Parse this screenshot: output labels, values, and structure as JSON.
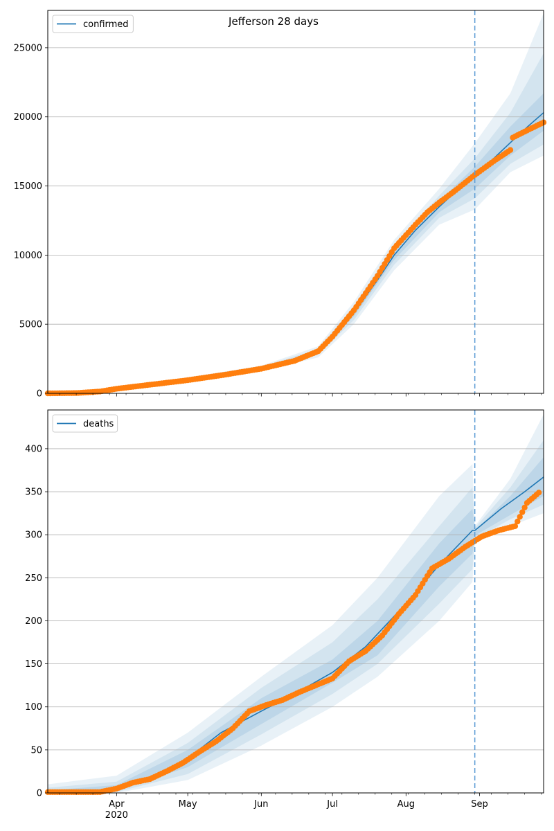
{
  "chart_data": [
    {
      "type": "line",
      "title": "Jefferson 28 days",
      "xlabel": "",
      "ylabel": "",
      "ylim": [
        0,
        27700
      ],
      "xlim": [
        "2020-03-03",
        "2020-09-28"
      ],
      "yticks": [
        0,
        5000,
        10000,
        15000,
        20000,
        25000
      ],
      "grid": "horizontal",
      "legend": {
        "position": "top-left",
        "entries": [
          "confirmed"
        ]
      },
      "forecast_start": "2020-08-30",
      "series": [
        {
          "name": "confirmed",
          "style": "line",
          "color": "#1f77b4",
          "x": [
            "2020-03-03",
            "2020-03-15",
            "2020-03-25",
            "2020-04-01",
            "2020-04-15",
            "2020-05-01",
            "2020-05-15",
            "2020-06-01",
            "2020-06-15",
            "2020-06-25",
            "2020-07-01",
            "2020-07-10",
            "2020-07-20",
            "2020-07-27",
            "2020-08-05",
            "2020-08-15",
            "2020-08-22",
            "2020-08-30",
            "2020-09-07",
            "2020-09-15",
            "2020-09-22",
            "2020-09-28"
          ],
          "values": [
            0,
            30,
            150,
            350,
            650,
            1000,
            1350,
            1800,
            2300,
            3000,
            4000,
            5800,
            8200,
            10000,
            11800,
            13500,
            14600,
            15700,
            17000,
            18300,
            19400,
            20300
          ]
        },
        {
          "name": "",
          "style": "markers",
          "color": "#ff7f0e",
          "x": [
            "2020-03-03",
            "2020-03-15",
            "2020-03-25",
            "2020-04-01",
            "2020-04-15",
            "2020-05-01",
            "2020-05-15",
            "2020-06-01",
            "2020-06-15",
            "2020-06-25",
            "2020-07-01",
            "2020-07-10",
            "2020-07-20",
            "2020-07-27",
            "2020-08-05",
            "2020-08-10",
            "2020-08-15",
            "2020-08-22",
            "2020-08-30",
            "2020-09-07",
            "2020-09-14",
            "2020-09-15",
            "2020-09-22",
            "2020-09-28"
          ],
          "values": [
            0,
            20,
            130,
            330,
            620,
            950,
            1300,
            1780,
            2350,
            3050,
            4100,
            6000,
            8500,
            10500,
            12200,
            13100,
            13800,
            14700,
            15800,
            16800,
            17600,
            18500,
            19100,
            19600
          ]
        }
      ],
      "bands_x": [
        "2020-03-03",
        "2020-04-01",
        "2020-05-01",
        "2020-06-01",
        "2020-06-25",
        "2020-07-10",
        "2020-07-27",
        "2020-08-15",
        "2020-08-30",
        "2020-09-14",
        "2020-09-28"
      ],
      "bands": [
        {
          "lower": [
            0,
            250,
            850,
            1600,
            2600,
            5000,
            8900,
            12200,
            13300,
            16000,
            17200
          ],
          "upper": [
            0,
            450,
            1150,
            2000,
            3400,
            6600,
            11100,
            14800,
            18100,
            21700,
            27500
          ]
        },
        {
          "lower": [
            0,
            290,
            910,
            1680,
            2780,
            5300,
            9300,
            12700,
            14100,
            16600,
            18000
          ],
          "upper": [
            0,
            410,
            1090,
            1920,
            3220,
            6300,
            10700,
            14300,
            17000,
            20300,
            24600
          ]
        },
        {
          "lower": [
            0,
            320,
            960,
            1750,
            2900,
            5550,
            9650,
            13100,
            14800,
            17200,
            19000
          ],
          "upper": [
            0,
            380,
            1040,
            1850,
            3100,
            6050,
            10350,
            13900,
            16400,
            19300,
            21700
          ]
        }
      ]
    },
    {
      "type": "line",
      "title": "",
      "xlabel": "",
      "ylabel": "",
      "ylim": [
        0,
        445
      ],
      "xlim": [
        "2020-03-03",
        "2020-09-28"
      ],
      "yticks": [
        0,
        50,
        100,
        150,
        200,
        250,
        300,
        350,
        400
      ],
      "xtick_labels": [
        "Apr\n2020",
        "May",
        "Jun",
        "Jul",
        "Aug",
        "Sep"
      ],
      "grid": "horizontal",
      "legend": {
        "position": "top-left",
        "entries": [
          "deaths"
        ]
      },
      "forecast_start": "2020-08-30",
      "series": [
        {
          "name": "deaths",
          "style": "line",
          "color": "#1f77b4",
          "x": [
            "2020-03-03",
            "2020-03-20",
            "2020-04-01",
            "2020-04-15",
            "2020-05-01",
            "2020-05-15",
            "2020-06-01",
            "2020-06-15",
            "2020-07-01",
            "2020-07-15",
            "2020-08-01",
            "2020-08-15",
            "2020-08-29",
            "2020-08-30",
            "2020-09-10",
            "2020-09-20",
            "2020-09-28"
          ],
          "values": [
            0,
            1,
            5,
            15,
            40,
            70,
            95,
            115,
            140,
            170,
            220,
            265,
            305,
            305,
            330,
            350,
            367
          ]
        },
        {
          "name": "",
          "style": "markers",
          "color": "#ff7f0e",
          "x": [
            "2020-03-03",
            "2020-03-25",
            "2020-04-01",
            "2020-04-08",
            "2020-04-15",
            "2020-04-22",
            "2020-04-29",
            "2020-05-06",
            "2020-05-13",
            "2020-05-20",
            "2020-05-27",
            "2020-06-03",
            "2020-06-10",
            "2020-06-17",
            "2020-06-24",
            "2020-07-01",
            "2020-07-08",
            "2020-07-15",
            "2020-07-22",
            "2020-07-29",
            "2020-08-05",
            "2020-08-12",
            "2020-08-19",
            "2020-08-26",
            "2020-09-02",
            "2020-09-09",
            "2020-09-16",
            "2020-09-21",
            "2020-09-26"
          ],
          "values": [
            1,
            1,
            5,
            12,
            16,
            25,
            35,
            48,
            60,
            75,
            95,
            102,
            108,
            117,
            125,
            133,
            153,
            165,
            183,
            208,
            230,
            261,
            272,
            286,
            298,
            305,
            310,
            337,
            349
          ]
        }
      ],
      "bands_x": [
        "2020-03-03",
        "2020-04-01",
        "2020-05-01",
        "2020-06-01",
        "2020-07-01",
        "2020-07-20",
        "2020-08-15",
        "2020-08-29",
        "2020-08-30",
        "2020-09-14",
        "2020-09-28"
      ],
      "bands": [
        {
          "lower": [
            0,
            0,
            15,
            55,
            100,
            135,
            200,
            245,
            290,
            310,
            325
          ],
          "upper": [
            10,
            20,
            70,
            135,
            195,
            250,
            345,
            382,
            310,
            365,
            440
          ]
        },
        {
          "lower": [
            0,
            1,
            22,
            68,
            115,
            150,
            220,
            260,
            295,
            318,
            335
          ],
          "upper": [
            6,
            13,
            58,
            122,
            175,
            225,
            310,
            355,
            308,
            355,
            410
          ]
        },
        {
          "lower": [
            0,
            2,
            30,
            80,
            128,
            160,
            240,
            278,
            299,
            323,
            345
          ],
          "upper": [
            3,
            9,
            50,
            110,
            155,
            200,
            290,
            330,
            305,
            345,
            390
          ]
        }
      ]
    }
  ]
}
